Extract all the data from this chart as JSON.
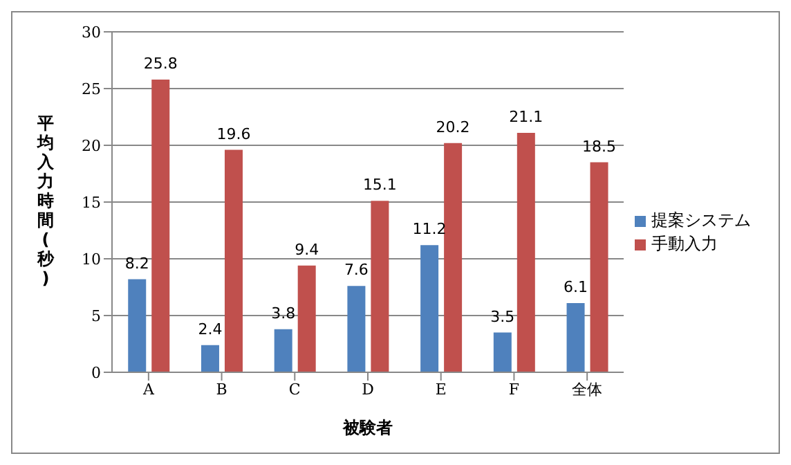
{
  "chart_data": {
    "type": "bar",
    "xlabel": "被験者",
    "ylabel": "平均入力時間(秒)",
    "categories": [
      "A",
      "B",
      "C",
      "D",
      "E",
      "F",
      "全体"
    ],
    "series": [
      {
        "name": "提案システム",
        "color": "#4f81bd",
        "values": [
          8.2,
          2.4,
          3.8,
          7.6,
          11.2,
          3.5,
          6.1
        ]
      },
      {
        "name": "手動入力",
        "color": "#c0504d",
        "values": [
          25.8,
          19.6,
          9.4,
          15.1,
          20.2,
          21.1,
          18.5
        ]
      }
    ],
    "ylim": [
      0,
      30
    ],
    "yticks": [
      0,
      5,
      10,
      15,
      20,
      25,
      30
    ],
    "grid": "y",
    "legend": "right",
    "data_labels": true
  }
}
